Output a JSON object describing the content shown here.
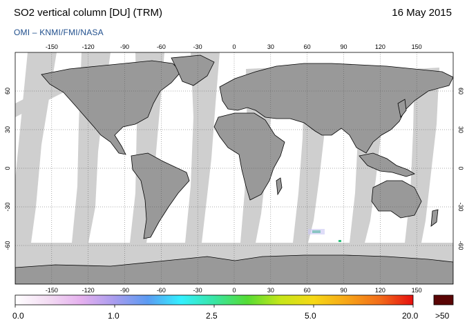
{
  "title": "SO2 vertical column [DU] (TRM)",
  "date": "16 May 2015",
  "credit": "OMI  –  KNMI/FMI/NASA",
  "map": {
    "lon_ticks": [
      "-150",
      "-120",
      "-90",
      "-60",
      "-30",
      "0",
      "30",
      "60",
      "90",
      "120",
      "150"
    ],
    "lat_ticks": [
      "60",
      "30",
      "0",
      "-30",
      "-60"
    ],
    "colors": {
      "land": "#999999",
      "no_data": "#cfcfcf",
      "background": "#ffffff",
      "hotspot": "#2ec27e"
    }
  },
  "colorbar": {
    "labels": [
      "0.0",
      "1.0",
      "2.5",
      "5.0",
      "20.0"
    ],
    "overflow_label": ">50",
    "overflow_color": "#5a0505",
    "stops": [
      "#ffffff",
      "#f3dcf3",
      "#e5b0ee",
      "#a89cee",
      "#5b9bf2",
      "#33f0ff",
      "#39e5a4",
      "#55dc34",
      "#c6e619",
      "#f6d816",
      "#f7a618",
      "#f26c1a",
      "#e60f0f"
    ]
  }
}
